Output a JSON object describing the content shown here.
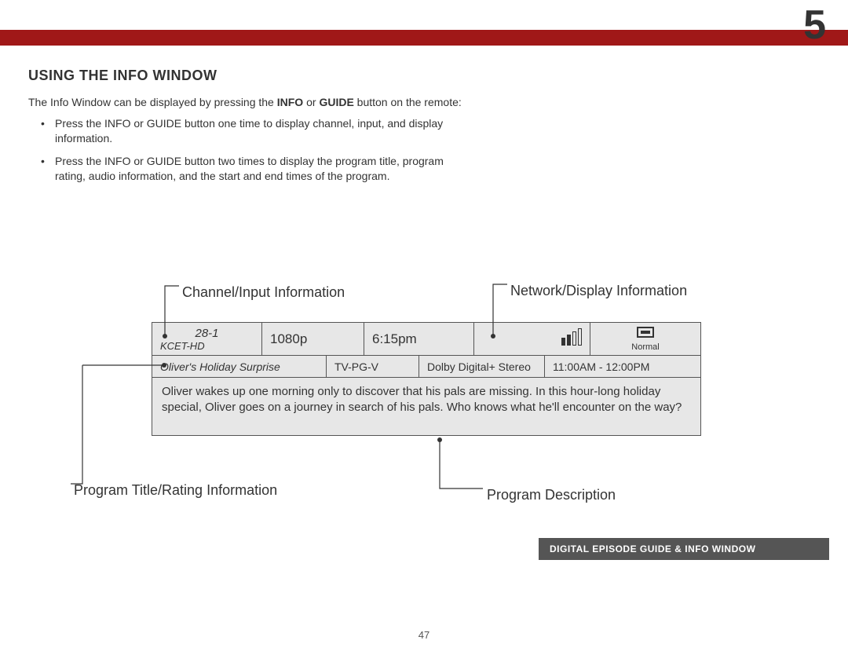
{
  "chapter_number": "5",
  "section_heading": "USING THE INFO WINDOW",
  "intro": {
    "prefix": "The Info Window can be displayed by pressing the ",
    "bold1": "INFO",
    "mid": " or ",
    "bold2": "GUIDE",
    "suffix": " button on the remote:"
  },
  "bullets": [
    {
      "prefix": "Press the ",
      "bold1": "INFO",
      "mid": " or ",
      "bold2": "GUIDE",
      "suffix": " button one time to display channel, input, and display information."
    },
    {
      "prefix": "Press the ",
      "bold1": "INFO",
      "mid": " or ",
      "bold2": "GUIDE",
      "suffix": " button two times to display the program title, program rating, audio information, and the start and end times of the program."
    }
  ],
  "callouts": {
    "channel_input": "Channel/Input Information",
    "network_display": "Network/Display Information",
    "program_title_rating": "Program Title/Rating Information",
    "program_description": "Program Description"
  },
  "info_window": {
    "channel_number": "28-1",
    "channel_name": "KCET-HD",
    "resolution": "1080p",
    "clock_time": "6:15pm",
    "display_mode": "Normal",
    "program_title": "Oliver's Holiday Surprise",
    "rating": "TV-PG-V",
    "audio": "Dolby Digital+ Stereo",
    "program_times": "11:00AM - 12:00PM",
    "description": "Oliver wakes up one morning only to discover that his pals are missing. In this hour-long holiday special, Oliver goes on a journey in search of his pals. Who knows what he'll encounter on the way?",
    "signal_bars": [
      10,
      14,
      18,
      22
    ],
    "signal_filled": [
      true,
      true,
      false,
      false
    ]
  },
  "footer_label": "DIGITAL EPISODE GUIDE & INFO WINDOW",
  "page_number": "47",
  "colors": {
    "banner": "#a01818",
    "box_bg": "#e7e7e7",
    "footer_bg": "#555555"
  }
}
